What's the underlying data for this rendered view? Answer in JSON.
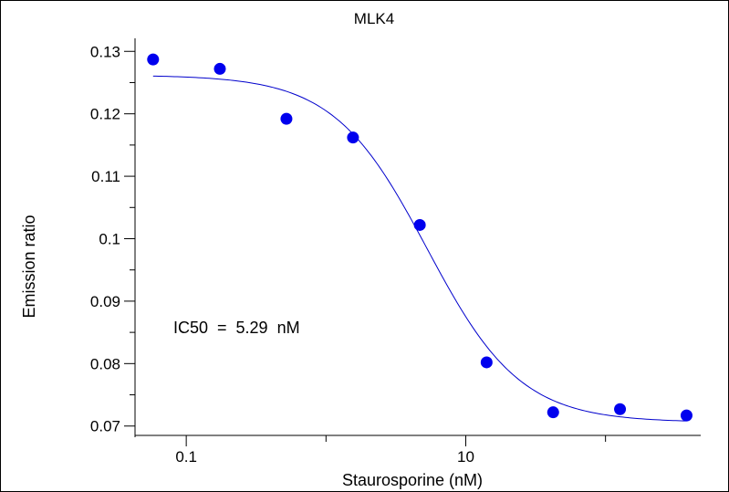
{
  "chart_data": {
    "type": "scatter",
    "title": "MLK4",
    "xlabel": "Staurosporine (nM)",
    "ylabel": "Emission ratio",
    "x_scale": "log",
    "xlim": [
      0.043,
      480
    ],
    "ylim": [
      0.0685,
      0.1315
    ],
    "x_ticks": [
      0.1,
      10
    ],
    "x_tick_labels": [
      "0.1",
      "10"
    ],
    "x_minor_ticks": [
      1,
      100
    ],
    "y_ticks": [
      0.07,
      0.08,
      0.09,
      0.1,
      0.11,
      0.12,
      0.13
    ],
    "y_tick_labels": [
      "0.07",
      "0.08",
      "0.09",
      "0.1",
      "0.11",
      "0.12",
      "0.13"
    ],
    "grid": false,
    "annotation": "IC50  =  5.29  nM",
    "points": {
      "x": [
        0.0579,
        0.174,
        0.521,
        1.56,
        4.69,
        14.1,
        42.2,
        127,
        380
      ],
      "y": [
        0.1287,
        0.1272,
        0.1192,
        0.1162,
        0.1022,
        0.0802,
        0.0722,
        0.0727,
        0.0717
      ],
      "color": "#0000ee"
    },
    "fit_curve": {
      "model": "4PL",
      "top": 0.1262,
      "bottom": 0.0706,
      "ic50": 5.29,
      "hill": 1.3,
      "color": "#0000cc"
    }
  }
}
